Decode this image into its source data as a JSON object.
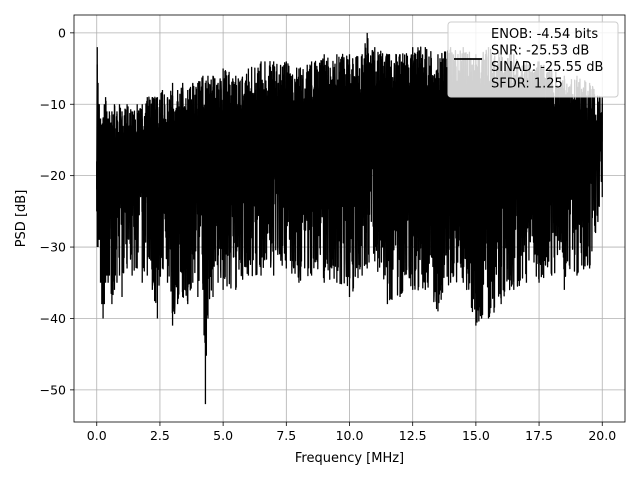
{
  "chart_data": {
    "type": "line",
    "title": "",
    "xlabel": "Frequency [MHz]",
    "ylabel": "PSD [dB]",
    "xlim": [
      -0.9,
      20.9
    ],
    "ylim": [
      -54.5,
      2.5
    ],
    "x_ticks": [
      0.0,
      2.5,
      5.0,
      7.5,
      10.0,
      12.5,
      15.0,
      17.5,
      20.0
    ],
    "x_tick_labels": [
      "0.0",
      "2.5",
      "5.0",
      "7.5",
      "10.0",
      "12.5",
      "15.0",
      "17.5",
      "20.0"
    ],
    "y_ticks": [
      0,
      -10,
      -20,
      -30,
      -40,
      -50
    ],
    "y_tick_labels": [
      "0",
      "−10",
      "−20",
      "−30",
      "−40",
      "−50"
    ],
    "grid": true,
    "line_color": "#000000",
    "legend": {
      "placement": "top-right",
      "entries": [
        "ENOB: -4.54 bits",
        "SNR: -25.53 dB",
        "SINAD: -25.55 dB",
        "SFDR: 1.25"
      ]
    },
    "series": [
      {
        "description": "noise-like PSD spectrum, dense oscillation",
        "x": [
          0.0,
          0.02,
          0.05,
          0.1,
          0.15,
          0.2,
          0.25,
          0.3,
          0.35,
          0.4,
          0.45,
          0.5,
          0.6,
          0.7,
          0.8,
          0.9,
          1.0,
          1.2,
          1.4,
          1.6,
          1.8,
          2.0,
          2.2,
          2.4,
          2.6,
          2.8,
          3.0,
          3.2,
          3.4,
          3.6,
          3.8,
          4.0,
          4.2,
          4.3,
          4.4,
          4.6,
          4.8,
          5.0,
          5.5,
          6.0,
          6.5,
          7.0,
          7.5,
          8.0,
          8.5,
          9.0,
          9.5,
          10.0,
          10.5,
          10.7,
          11.0,
          11.5,
          12.0,
          12.5,
          13.0,
          13.5,
          14.0,
          14.5,
          15.0,
          15.5,
          16.0,
          16.5,
          17.0,
          17.5,
          18.0,
          18.5,
          19.0,
          19.5,
          20.0
        ],
        "upper": [
          -18,
          -2,
          -7,
          -10,
          -12,
          -13,
          -12,
          -10,
          -9,
          -11,
          -12,
          -11,
          -11,
          -10,
          -11,
          -10,
          -11,
          -10,
          -11,
          -10,
          -10,
          -9,
          -9,
          -9,
          -8,
          -9,
          -7,
          -8,
          -7,
          -8,
          -7,
          -7,
          -6,
          -7,
          -6,
          -6,
          -7,
          -5,
          -6,
          -5,
          -4,
          -4,
          -4,
          -5,
          -4,
          -3,
          -3,
          -3,
          -3,
          0,
          -2,
          -3,
          -3,
          -2,
          -2,
          -3,
          -2,
          -2,
          -3,
          -2,
          -3,
          -3,
          -4,
          -4,
          -5,
          -6,
          -6,
          -7,
          -9
        ],
        "lower": [
          -25,
          -30,
          -30,
          -29,
          -35,
          -38,
          -40,
          -38,
          -35,
          -34,
          -35,
          -34,
          -38,
          -36,
          -35,
          -34,
          -37,
          -33,
          -34,
          -33,
          -35,
          -34,
          -36,
          -40,
          -33,
          -35,
          -41,
          -38,
          -37,
          -38,
          -35,
          -37,
          -36,
          -52,
          -40,
          -37,
          -35,
          -36,
          -36,
          -34,
          -34,
          -34,
          -33,
          -35,
          -34,
          -35,
          -35,
          -37,
          -34,
          -33,
          -32,
          -38,
          -37,
          -36,
          -36,
          -39,
          -35,
          -35,
          -41,
          -40,
          -38,
          -36,
          -35,
          -35,
          -34,
          -36,
          -34,
          -33,
          -23
        ]
      }
    ]
  }
}
